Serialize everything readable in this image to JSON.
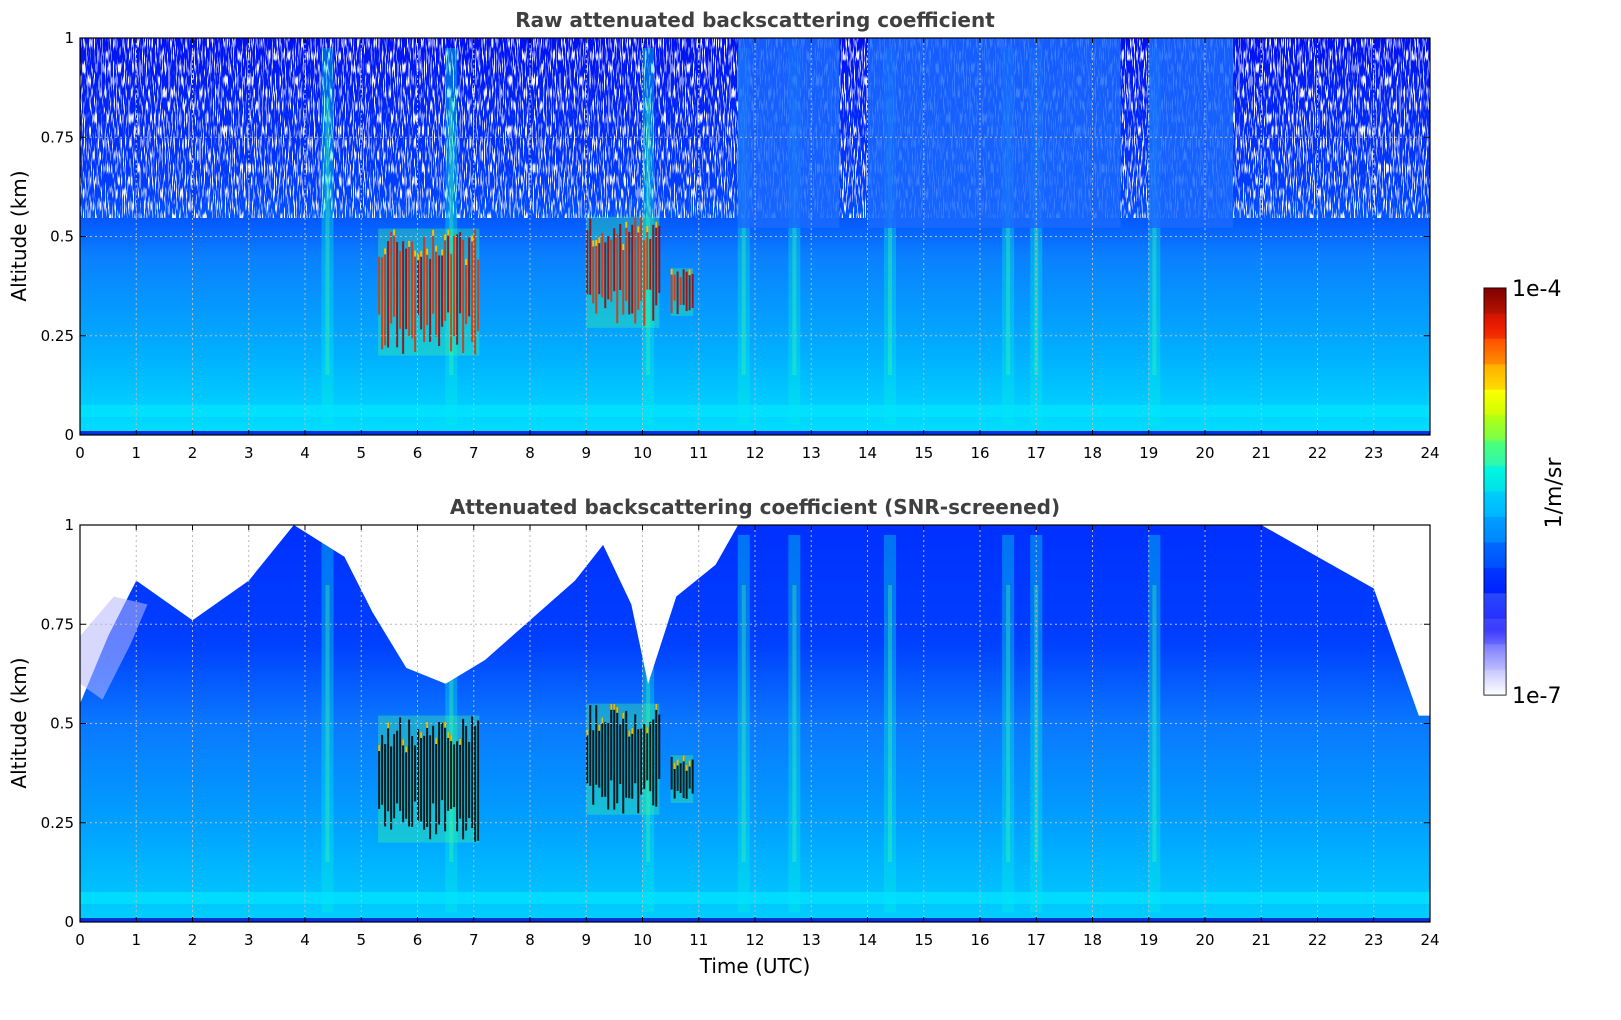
{
  "chart_data": [
    {
      "type": "heatmap",
      "title": "Raw attenuated backscattering coefficient",
      "xlabel": "",
      "ylabel": "Altitude (km)",
      "xlim": [
        0,
        24
      ],
      "ylim": [
        0,
        1
      ],
      "xticks": [
        "0",
        "1",
        "2",
        "3",
        "4",
        "5",
        "6",
        "7",
        "8",
        "9",
        "10",
        "11",
        "12",
        "13",
        "14",
        "15",
        "16",
        "17",
        "18",
        "19",
        "20",
        "21",
        "22",
        "23",
        "24"
      ],
      "yticks": [
        "0",
        "0.25",
        "0.5",
        "0.75",
        "1"
      ],
      "grid": true,
      "features": {
        "noise_region_altitude_km": [
          0.55,
          1.0
        ],
        "noise_clear_windows_utc": [
          [
            11.7,
            13.5
          ],
          [
            14.0,
            18.5
          ],
          [
            19.0,
            20.5
          ]
        ],
        "strong_layers": [
          {
            "x_start": 5.3,
            "x_end": 7.1,
            "y_bottom": 0.2,
            "y_top": 0.52
          },
          {
            "x_start": 9.0,
            "x_end": 10.3,
            "y_bottom": 0.27,
            "y_top": 0.55
          },
          {
            "x_start": 10.5,
            "x_end": 10.9,
            "y_bottom": 0.3,
            "y_top": 0.42
          }
        ],
        "vertical_streaks_utc": [
          4.4,
          6.6,
          10.1,
          11.8,
          12.7,
          14.4,
          16.5,
          17.0,
          19.1
        ]
      }
    },
    {
      "type": "heatmap",
      "title": "Attenuated backscattering coefficient (SNR-screened)",
      "xlabel": "Time (UTC)",
      "ylabel": "Altitude (km)",
      "xlim": [
        0,
        24
      ],
      "ylim": [
        0,
        1
      ],
      "xticks": [
        "0",
        "1",
        "2",
        "3",
        "4",
        "5",
        "6",
        "7",
        "8",
        "9",
        "10",
        "11",
        "12",
        "13",
        "14",
        "15",
        "16",
        "17",
        "18",
        "19",
        "20",
        "21",
        "22",
        "23",
        "24"
      ],
      "yticks": [
        "0",
        "0.25",
        "0.5",
        "0.75",
        "1"
      ],
      "grid": true,
      "features": {
        "screened_boundary": [
          [
            0,
            0.55
          ],
          [
            0.5,
            0.72
          ],
          [
            1,
            0.86
          ],
          [
            2,
            0.76
          ],
          [
            3,
            0.86
          ],
          [
            3.8,
            1.0
          ],
          [
            4.7,
            0.92
          ],
          [
            5.2,
            0.78
          ],
          [
            5.8,
            0.64
          ],
          [
            6.5,
            0.6
          ],
          [
            7.2,
            0.66
          ],
          [
            8.0,
            0.76
          ],
          [
            8.8,
            0.86
          ],
          [
            9.3,
            0.95
          ],
          [
            9.8,
            0.8
          ],
          [
            10.1,
            0.6
          ],
          [
            10.6,
            0.82
          ],
          [
            11.3,
            0.9
          ],
          [
            11.7,
            1.0
          ],
          [
            21.0,
            1.0
          ],
          [
            22.0,
            0.92
          ],
          [
            23.0,
            0.84
          ],
          [
            23.8,
            0.52
          ],
          [
            24,
            0.52
          ]
        ],
        "saturated_regions": [
          {
            "x_start": 5.3,
            "x_end": 7.1,
            "y_bottom": 0.2,
            "y_top": 0.52
          },
          {
            "x_start": 9.0,
            "x_end": 10.3,
            "y_bottom": 0.27,
            "y_top": 0.55
          },
          {
            "x_start": 10.5,
            "x_end": 10.9,
            "y_bottom": 0.3,
            "y_top": 0.42
          }
        ]
      }
    }
  ],
  "colorbar": {
    "top_label": "1e-4",
    "bottom_label": "1e-7",
    "unit_label": "1/m/sr",
    "scale": "log",
    "range": [
      1e-07,
      0.0001
    ],
    "colors": [
      "#ffffff",
      "#e0e0ff",
      "#b0b0ff",
      "#6f6fff",
      "#0000ff",
      "#0040ff",
      "#0090ff",
      "#00ccff",
      "#00ffcc",
      "#66ff66",
      "#ccff00",
      "#ffff00",
      "#ffa000",
      "#ff4000",
      "#d00000",
      "#800000"
    ]
  }
}
